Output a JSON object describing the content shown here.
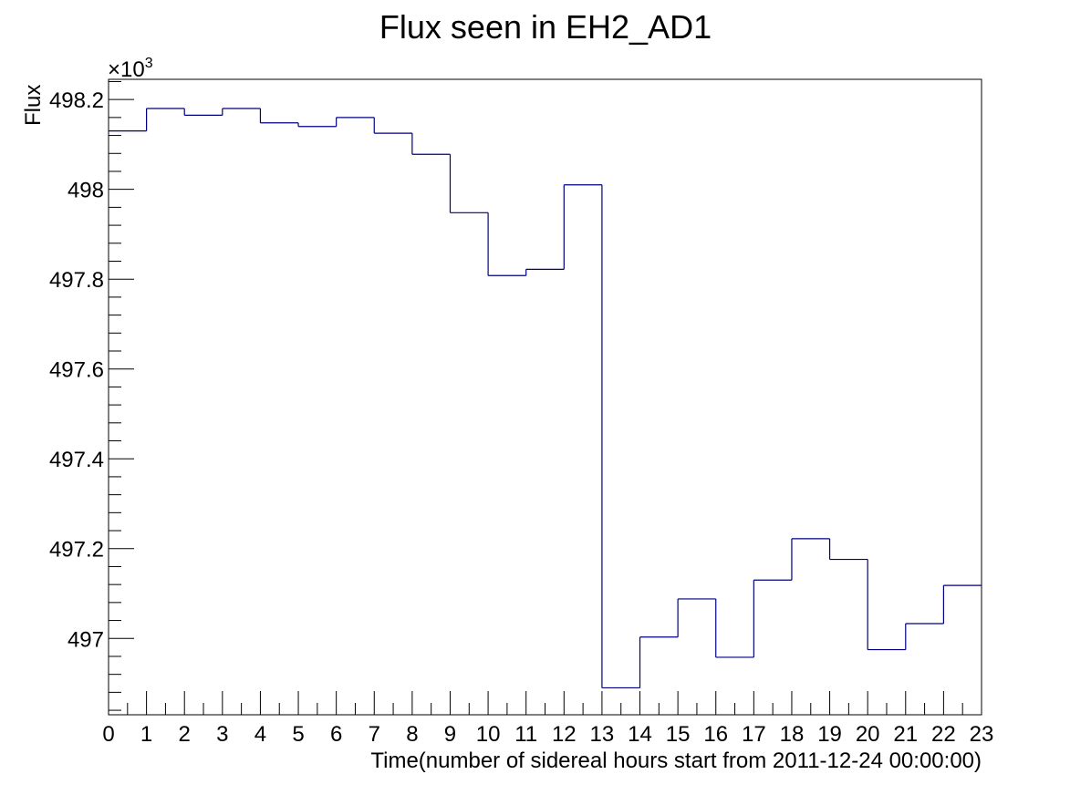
{
  "chart_data": {
    "type": "line",
    "style": "step",
    "title": "Flux seen in EH2_AD1",
    "xlabel": "Time(number of sidereal hours start from 2011-12-24 00:00:00)",
    "ylabel": "Flux",
    "y_multiplier": "×10³",
    "y_multiplier_base": "×10",
    "y_multiplier_exp": "3",
    "xlim": [
      0,
      23
    ],
    "ylim": [
      496.83,
      498.245
    ],
    "x_ticks": [
      0,
      1,
      2,
      3,
      4,
      5,
      6,
      7,
      8,
      9,
      10,
      11,
      12,
      13,
      14,
      15,
      16,
      17,
      18,
      19,
      20,
      21,
      22,
      23
    ],
    "y_ticks": [
      497,
      497.2,
      497.4,
      497.6,
      497.8,
      498,
      498.2
    ],
    "y_tick_labels": [
      "497",
      "497.2",
      "497.4",
      "497.6",
      "497.8",
      "498",
      "498.2"
    ],
    "line_color": "#000080",
    "grid": false,
    "x": [
      0,
      1,
      2,
      3,
      4,
      5,
      6,
      7,
      8,
      9,
      10,
      11,
      12,
      13,
      14,
      15,
      16,
      17,
      18,
      19,
      20,
      21,
      22
    ],
    "values": [
      498.13,
      498.18,
      498.165,
      498.18,
      498.148,
      498.14,
      498.16,
      498.125,
      498.078,
      497.948,
      497.808,
      497.822,
      498.01,
      496.89,
      497.003,
      497.088,
      496.958,
      497.13,
      497.222,
      497.176,
      496.975,
      497.033,
      497.118
    ]
  }
}
